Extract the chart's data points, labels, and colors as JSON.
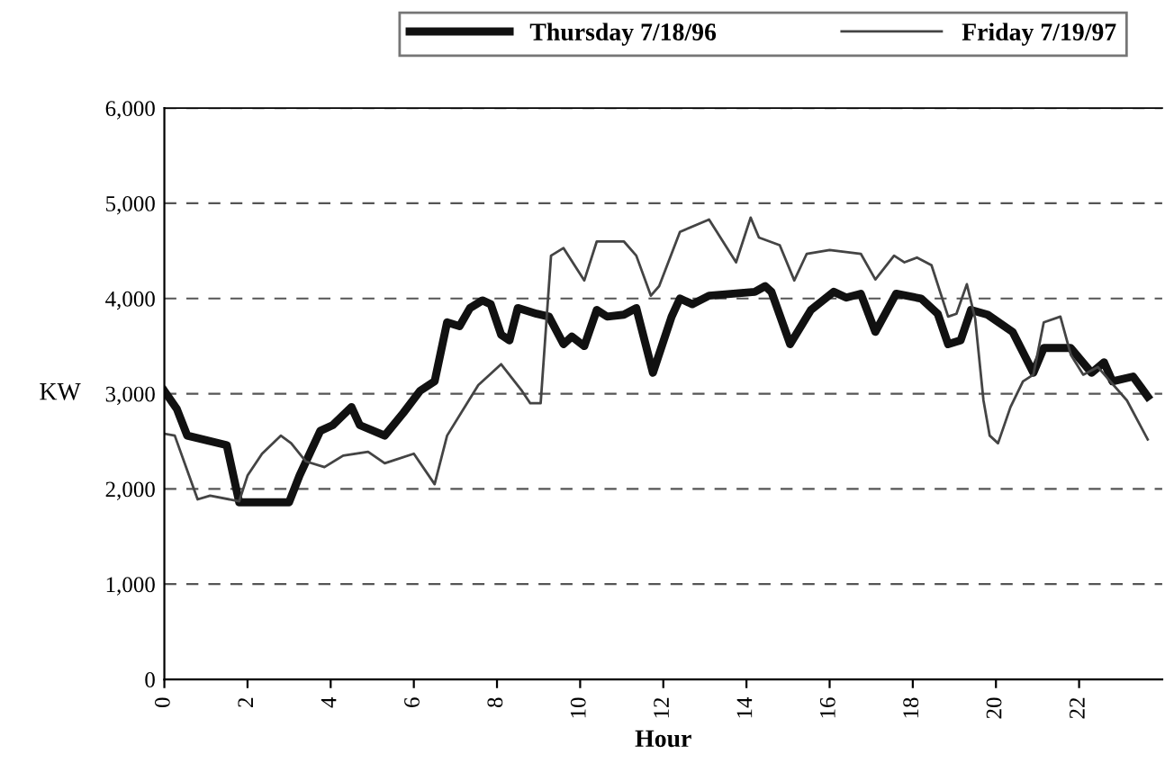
{
  "chart_data": {
    "type": "line",
    "xlabel": "Hour",
    "ylabel": "KW",
    "xlim": [
      0,
      24
    ],
    "xticks": [
      0,
      2,
      4,
      6,
      8,
      10,
      12,
      14,
      16,
      18,
      20,
      22
    ],
    "ylim": [
      0,
      6000
    ],
    "yticks": [
      {
        "value": 0,
        "label": "0"
      },
      {
        "value": 1000,
        "label": "1,000"
      },
      {
        "value": 2000,
        "label": "2,000"
      },
      {
        "value": 3000,
        "label": "3,000"
      },
      {
        "value": 4000,
        "label": "4,000"
      },
      {
        "value": 5000,
        "label": "5,000"
      },
      {
        "value": 6000,
        "label": "6,000"
      }
    ],
    "grid": "y",
    "legend": "top",
    "marker": "none",
    "line_style": "solid",
    "series": [
      {
        "name": "Thursday 7/18/96",
        "color": "#111111",
        "x": [
          0,
          0.3,
          0.55,
          1.5,
          1.8,
          3.0,
          3.25,
          3.75,
          4.05,
          4.5,
          4.7,
          5.3,
          5.75,
          6.15,
          6.5,
          6.8,
          7.1,
          7.35,
          7.65,
          7.85,
          8.1,
          8.3,
          8.5,
          8.95,
          9.25,
          9.6,
          9.8,
          10.1,
          10.4,
          10.65,
          11.05,
          11.35,
          11.75,
          12.2,
          12.4,
          12.7,
          13.1,
          14.2,
          14.45,
          14.6,
          15.05,
          15.55,
          16.1,
          16.4,
          16.75,
          17.1,
          17.6,
          18.2,
          18.6,
          18.85,
          19.15,
          19.4,
          19.8,
          20.4,
          20.9,
          21.15,
          21.8,
          22.3,
          22.6,
          22.8,
          23.3,
          23.65
        ],
        "values": [
          3030,
          2840,
          2560,
          2460,
          1860,
          1860,
          2140,
          2610,
          2670,
          2860,
          2670,
          2560,
          2800,
          3030,
          3130,
          3750,
          3710,
          3900,
          3980,
          3940,
          3620,
          3560,
          3900,
          3840,
          3810,
          3520,
          3600,
          3500,
          3880,
          3810,
          3830,
          3900,
          3220,
          3810,
          4000,
          3940,
          4030,
          4070,
          4130,
          4070,
          3520,
          3880,
          4070,
          4010,
          4050,
          3650,
          4050,
          4000,
          3840,
          3520,
          3560,
          3880,
          3830,
          3650,
          3220,
          3480,
          3480,
          3220,
          3330,
          3130,
          3180,
          2970
        ]
      },
      {
        "name": "Friday 7/19/97",
        "color": "#444444",
        "x": [
          0,
          0.25,
          0.8,
          1.1,
          1.8,
          2.0,
          2.35,
          2.8,
          3.05,
          3.4,
          3.85,
          4.3,
          4.9,
          5.3,
          6.0,
          6.5,
          6.8,
          7.55,
          8.1,
          8.6,
          8.8,
          9.05,
          9.3,
          9.6,
          10.1,
          10.4,
          11.05,
          11.35,
          11.7,
          11.9,
          12.4,
          13.1,
          13.75,
          14.1,
          14.3,
          14.8,
          15.15,
          15.45,
          16.0,
          16.75,
          17.1,
          17.55,
          17.8,
          18.1,
          18.45,
          18.85,
          19.05,
          19.3,
          19.5,
          19.7,
          19.85,
          20.05,
          20.35,
          20.65,
          20.9,
          21.15,
          21.55,
          21.8,
          22.1,
          22.45,
          22.75,
          23.15,
          23.65
        ],
        "values": [
          2580,
          2560,
          1890,
          1930,
          1870,
          2140,
          2370,
          2560,
          2480,
          2290,
          2230,
          2350,
          2390,
          2270,
          2370,
          2050,
          2560,
          3090,
          3310,
          3030,
          2900,
          2900,
          4450,
          4530,
          4190,
          4600,
          4600,
          4450,
          4030,
          4130,
          4700,
          4830,
          4380,
          4850,
          4640,
          4560,
          4190,
          4470,
          4510,
          4470,
          4200,
          4450,
          4380,
          4430,
          4350,
          3810,
          3840,
          4150,
          3790,
          2930,
          2560,
          2480,
          2860,
          3130,
          3200,
          3750,
          3810,
          3410,
          3200,
          3280,
          3130,
          2930,
          2520
        ]
      }
    ]
  }
}
